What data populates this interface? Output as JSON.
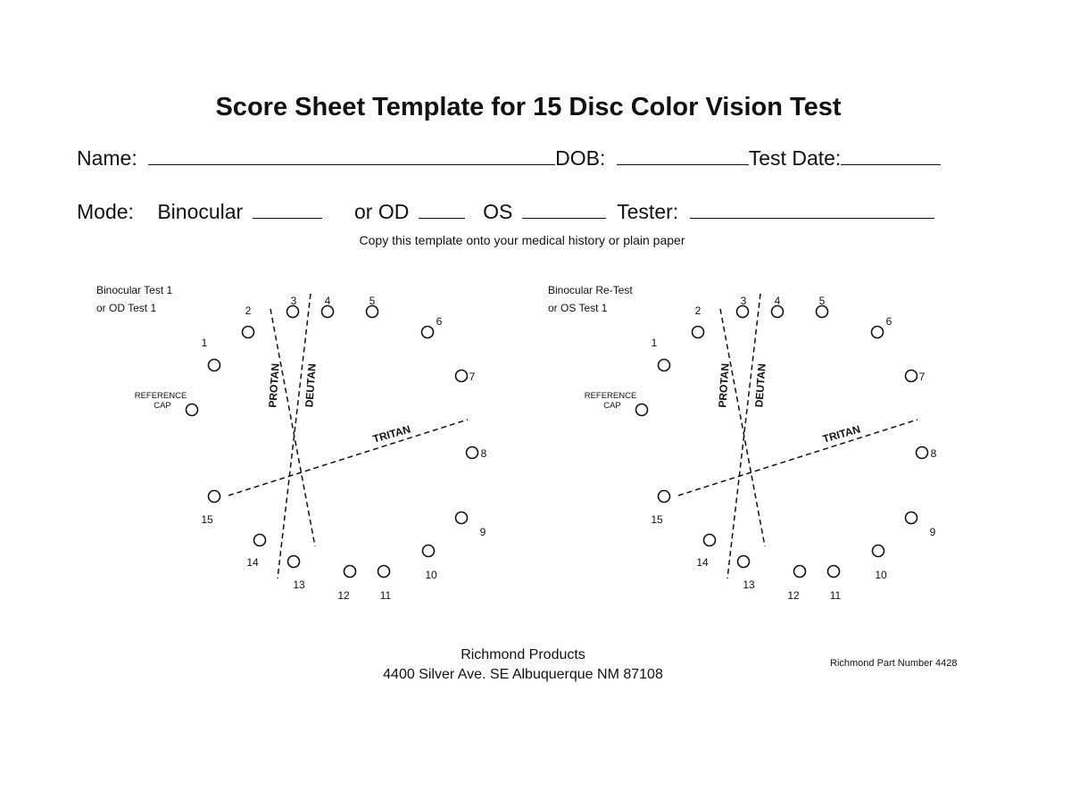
{
  "title": "Score Sheet Template for 15 Disc Color Vision Test",
  "line1": {
    "name_label": "Name:",
    "dob_label": "DOB:",
    "test_date_label": "Test Date:"
  },
  "line2": {
    "mode_label": "Mode:",
    "binocular_label": "Binocular",
    "or_od_label": "or OD",
    "os_label": "OS",
    "tester_label": "Tester:"
  },
  "instruction": "Copy this template onto your medical history or plain paper",
  "diagram_left": {
    "heading_1": "Binocular Test 1",
    "heading_2": "or OD Test 1"
  },
  "diagram_right": {
    "heading_1": "Binocular Re-Test",
    "heading_2": "or OS Test 1"
  },
  "diagram_labels": {
    "reference_1": "REFERENCE",
    "reference_2": "CAP",
    "protan": "PROTAN",
    "deutan": "DEUTAN",
    "tritan": "TRITAN",
    "cap_numbers": [
      "1",
      "2",
      "3",
      "4",
      "5",
      "6",
      "7",
      "8",
      "9",
      "10",
      "11",
      "12",
      "13",
      "14",
      "15"
    ]
  },
  "footer": {
    "company": "Richmond Products",
    "address": "4400 Silver Ave. SE Albuquerque NM 87108",
    "part_number": "Richmond Part Number 4428"
  }
}
